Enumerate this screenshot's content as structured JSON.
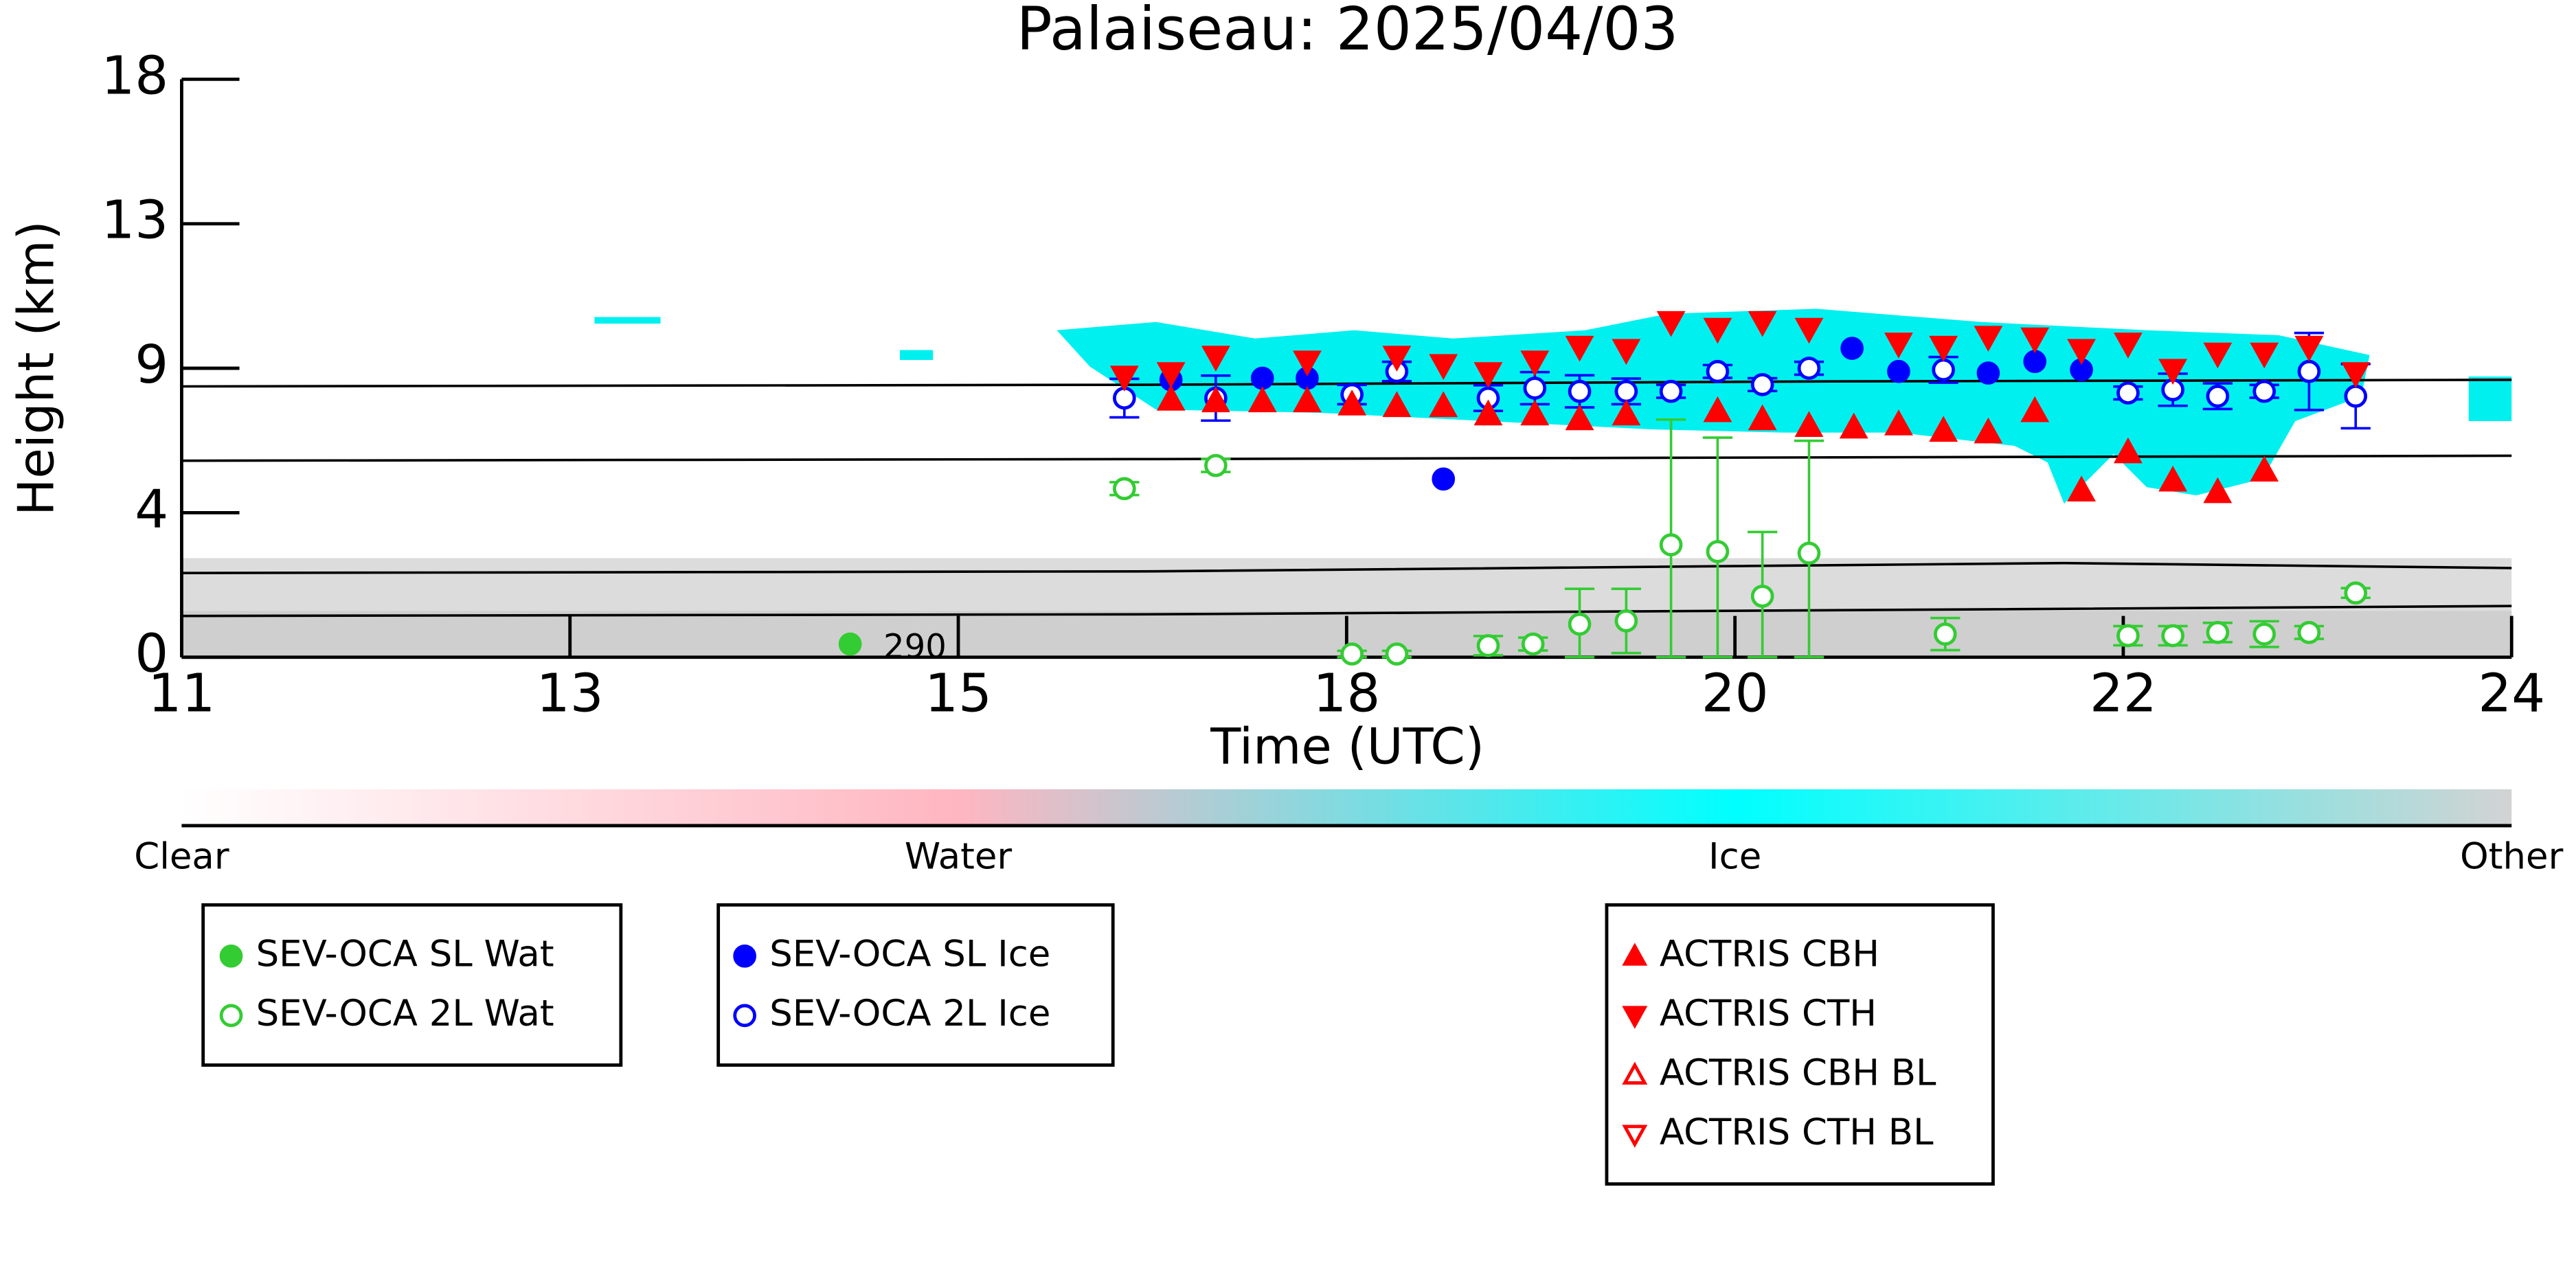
{
  "chart_data": {
    "type": "scatter",
    "title": "Palaiseau: 2025/04/03",
    "x_label": "Time (UTC)",
    "y_label": "Height (km)",
    "xlim": [
      11,
      24
    ],
    "ylim": [
      0,
      18
    ],
    "xticks": [
      11,
      {
        "value": 13.1667,
        "label": "13"
      },
      {
        "value": 15.3333,
        "label": "15"
      },
      {
        "value": 17.5,
        "label": "18"
      },
      {
        "value": 19.6667,
        "label": "20"
      },
      {
        "value": 21.8333,
        "label": "22"
      },
      24
    ],
    "yticks": [
      0,
      {
        "value": 4.5,
        "label": "4"
      },
      9,
      {
        "value": 13.5,
        "label": "13"
      },
      18
    ],
    "annotations": [
      "290"
    ],
    "colorbar": {
      "labels": [
        "Clear",
        "Water",
        "Ice",
        "Other"
      ],
      "colors": [
        "#ffffff",
        "#ffb6c1",
        "#00ffff",
        "#d3d3d3"
      ]
    },
    "series": [
      {
        "name": "SEV-OCA SL Wat",
        "color": "#33cc33",
        "marker": "circle",
        "filled": true,
        "x": [
          14.73
        ],
        "values": [
          0.41
        ]
      },
      {
        "name": "SEV-OCA 2L Wat",
        "color": "#33cc33",
        "marker": "circle",
        "filled": false,
        "x": [
          16.26,
          16.77,
          17.53,
          17.78,
          18.29,
          18.54,
          18.8,
          19.06,
          19.31,
          19.57,
          19.82,
          20.08,
          20.84,
          21.86,
          22.11,
          22.36,
          22.62,
          22.87,
          23.13
        ],
        "values": [
          5.25,
          5.97,
          0.1,
          0.1,
          0.36,
          0.41,
          1.03,
          1.13,
          3.5,
          3.29,
          1.9,
          3.24,
          0.72,
          0.67,
          0.67,
          0.77,
          0.72,
          0.77,
          2.0
        ],
        "errors": [
          0.2,
          0.2,
          0.1,
          0.1,
          0.3,
          0.2,
          1.1,
          1.0,
          3.9,
          3.55,
          2.0,
          3.5,
          0.5,
          0.3,
          0.3,
          0.3,
          0.4,
          0.2,
          0.15
        ]
      },
      {
        "name": "SEV-OCA SL Ice",
        "color": "#0000ff",
        "marker": "circle",
        "filled": true,
        "x": [
          16.52,
          17.03,
          17.28,
          18.04,
          20.32,
          20.58,
          21.08,
          21.34,
          21.6
        ],
        "values": [
          8.64,
          8.69,
          8.69,
          5.55,
          9.62,
          8.9,
          8.85,
          9.21,
          8.95
        ]
      },
      {
        "name": "SEV-OCA 2L Ice",
        "color": "#0000ff",
        "marker": "circle",
        "filled": false,
        "x": [
          16.26,
          16.77,
          17.53,
          17.78,
          18.29,
          18.55,
          18.8,
          19.06,
          19.31,
          19.57,
          19.82,
          20.08,
          20.83,
          21.86,
          22.11,
          22.36,
          22.62,
          22.87,
          23.13
        ],
        "values": [
          8.07,
          8.07,
          8.18,
          8.9,
          8.07,
          8.38,
          8.28,
          8.28,
          8.28,
          8.9,
          8.49,
          9.0,
          8.95,
          8.23,
          8.33,
          8.13,
          8.28,
          8.9,
          8.13
        ],
        "errors": [
          0.6,
          0.7,
          0.3,
          0.3,
          0.4,
          0.5,
          0.5,
          0.4,
          0.2,
          0.2,
          0.2,
          0.2,
          0.4,
          0.2,
          0.5,
          0.4,
          0.2,
          1.2,
          1.0
        ]
      },
      {
        "name": "ACTRIS CBH",
        "color": "#ff0000",
        "marker": "triangle-up",
        "filled": true,
        "x": [
          16.52,
          16.77,
          17.03,
          17.28,
          17.53,
          17.78,
          18.04,
          18.29,
          18.55,
          18.8,
          19.06,
          19.57,
          19.82,
          20.08,
          20.33,
          20.58,
          20.83,
          21.08,
          21.34,
          21.6,
          21.86,
          22.11,
          22.36,
          22.62
        ],
        "values": [
          8.02,
          7.97,
          7.97,
          7.97,
          7.87,
          7.82,
          7.82,
          7.56,
          7.56,
          7.41,
          7.56,
          7.66,
          7.41,
          7.2,
          7.15,
          7.25,
          7.05,
          7.0,
          7.66,
          5.19,
          6.38,
          5.5,
          5.14,
          5.81
        ]
      },
      {
        "name": "ACTRIS CTH",
        "color": "#ff0000",
        "marker": "triangle-down",
        "filled": true,
        "x": [
          16.26,
          16.52,
          16.77,
          17.28,
          17.78,
          18.04,
          18.29,
          18.55,
          18.8,
          19.06,
          19.31,
          19.57,
          19.82,
          20.08,
          20.58,
          20.83,
          21.08,
          21.34,
          21.6,
          21.86,
          22.11,
          22.36,
          22.62,
          22.87,
          23.13
        ],
        "values": [
          8.74,
          8.85,
          9.36,
          9.21,
          9.36,
          9.1,
          8.85,
          9.21,
          9.67,
          9.57,
          10.44,
          10.23,
          10.44,
          10.23,
          9.77,
          9.67,
          9.98,
          9.93,
          9.57,
          9.77,
          8.95,
          9.46,
          9.46,
          9.67,
          8.85
        ]
      },
      {
        "name": "ACTRIS CBH BL",
        "color": "#ff0000",
        "marker": "triangle-up",
        "filled": false,
        "x": [],
        "values": []
      },
      {
        "name": "ACTRIS CTH BL",
        "color": "#ff0000",
        "marker": "triangle-down",
        "filled": false,
        "x": [],
        "values": []
      }
    ]
  }
}
